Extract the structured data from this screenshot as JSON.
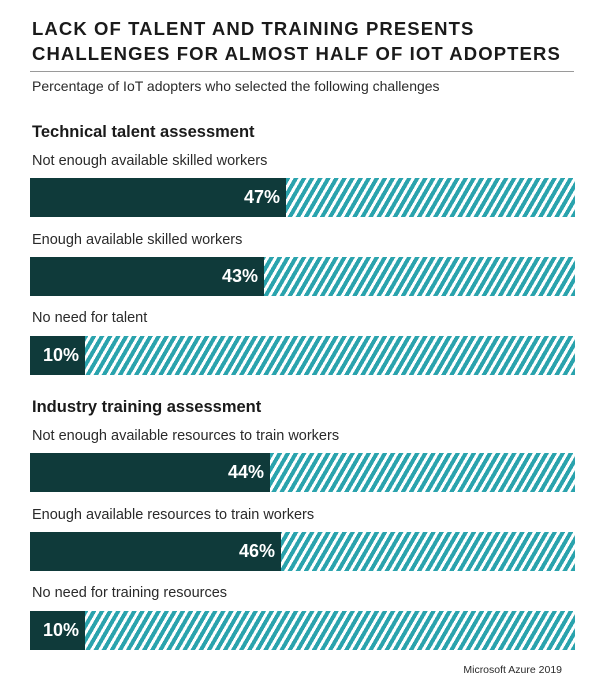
{
  "title": "LACK OF TALENT AND TRAINING PRESENTS CHALLENGES FOR ALMOST HALF OF IOT ADOPTERS",
  "subtitle": "Percentage of IoT adopters who selected the following challenges",
  "footer": "Microsoft Azure 2019",
  "colors": {
    "fill": "#0f3a3a",
    "remainder": "#2aa3ad",
    "hatch": "#ffffff"
  },
  "chart_data": {
    "type": "bar",
    "orientation": "horizontal",
    "stacked_with_remainder": true,
    "xlim": [
      0,
      100
    ],
    "groups": [
      {
        "name": "Technical talent assessment",
        "categories": [
          "Not enough available skilled workers",
          "Enough available skilled workers",
          "No need for talent"
        ],
        "values": [
          47,
          43,
          10
        ],
        "labels": [
          "47%",
          "43%",
          "10%"
        ]
      },
      {
        "name": "Industry training assessment",
        "categories": [
          "Not enough available resources to train workers",
          "Enough available resources to train workers",
          "No need for training resources"
        ],
        "values": [
          44,
          46,
          10
        ],
        "labels": [
          "44%",
          "46%",
          "10%"
        ]
      }
    ]
  }
}
